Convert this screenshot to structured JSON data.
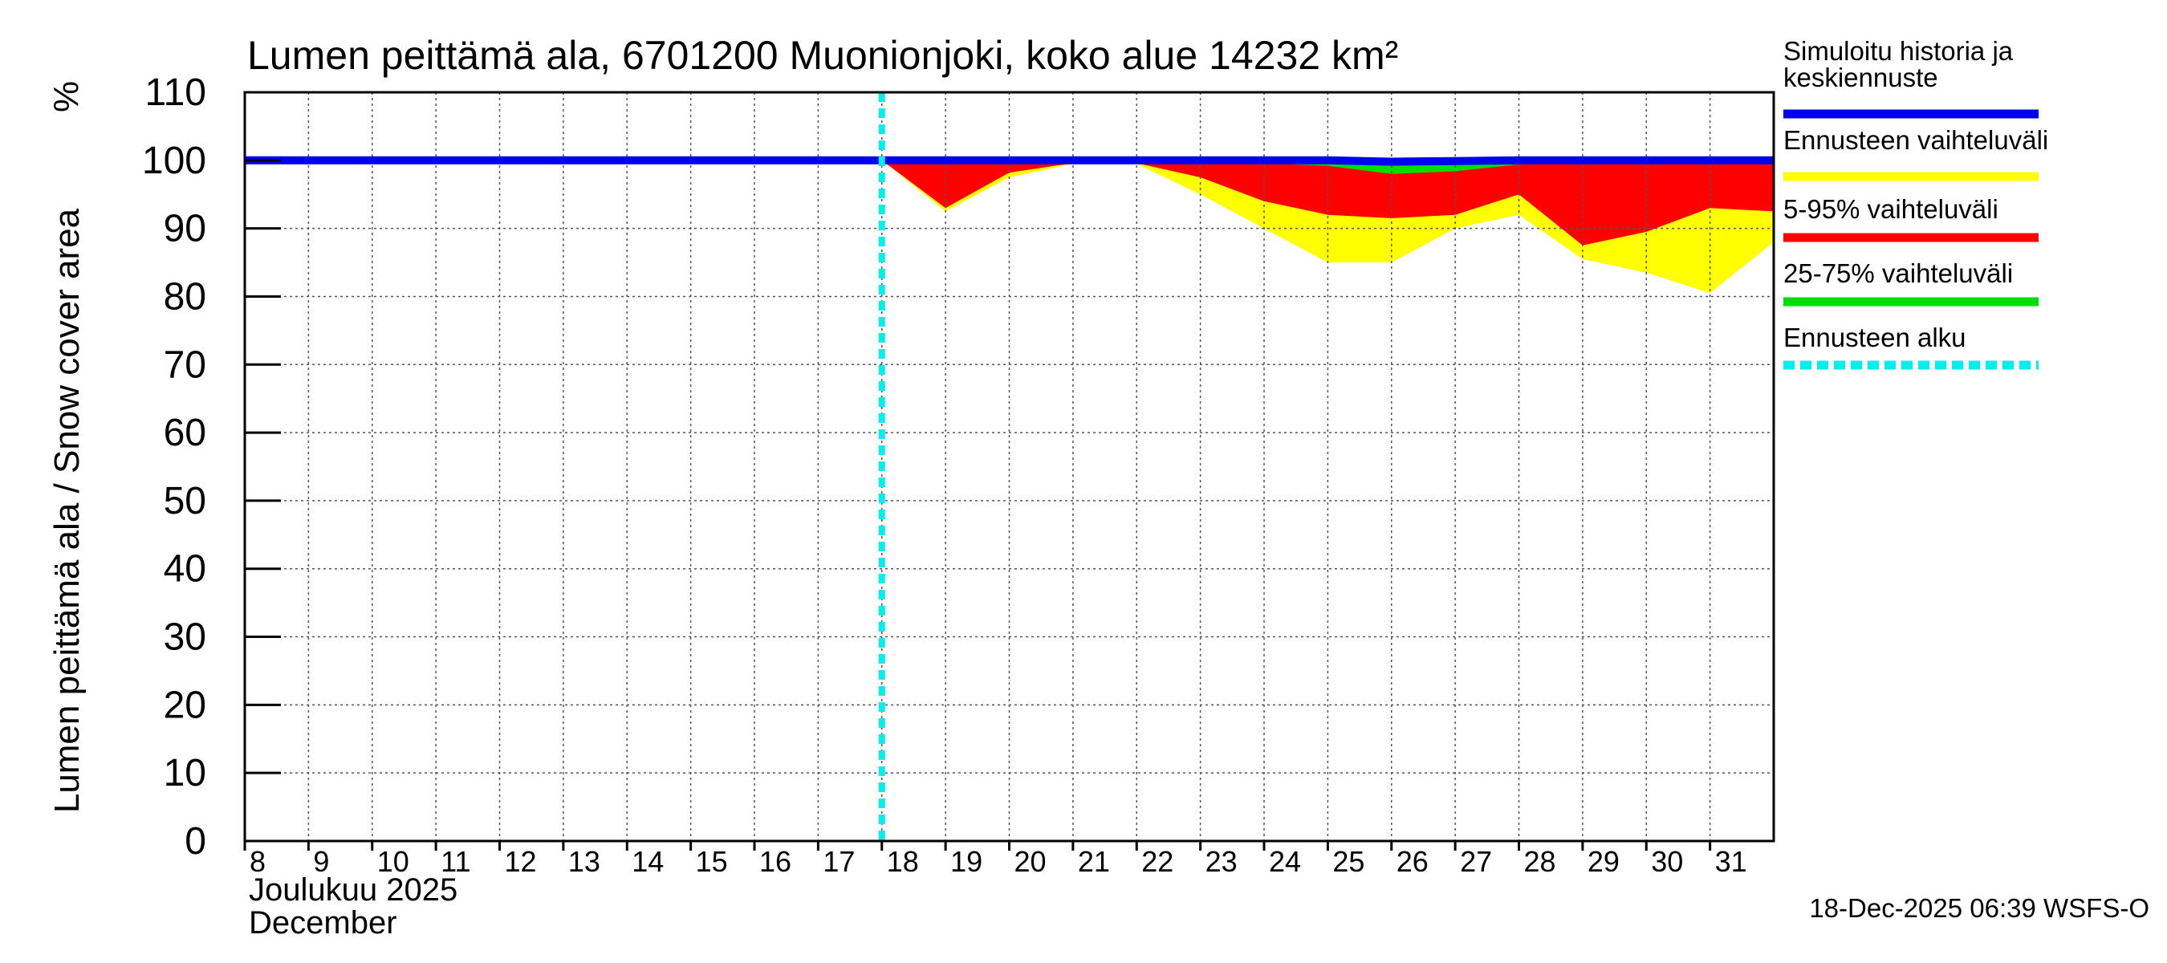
{
  "chart_data": {
    "type": "area",
    "title": "Lumen peittämä ala, 6701200 Muonionjoki, koko alue 14232 km²",
    "ylabel": "Lumen peittämä ala / Snow cover area",
    "yunit": "%",
    "ylim": [
      0,
      110
    ],
    "yticks": [
      0,
      10,
      20,
      30,
      40,
      50,
      60,
      70,
      80,
      90,
      100,
      110
    ],
    "xlim": [
      8,
      32
    ],
    "xticks": [
      8,
      9,
      10,
      11,
      12,
      13,
      14,
      15,
      16,
      17,
      18,
      19,
      20,
      21,
      22,
      23,
      24,
      25,
      26,
      27,
      28,
      29,
      30,
      31
    ],
    "xlabel_line1": "Joulukuu  2025",
    "xlabel_line2": "December",
    "grid": true,
    "forecast_start": 18,
    "series": [
      {
        "name": "Ennusteen vaihteluväli",
        "color": "#ffff00",
        "x": [
          18,
          19,
          20,
          21,
          22,
          23,
          24,
          25,
          26,
          27,
          28,
          29,
          30,
          31,
          32
        ],
        "upper": [
          100,
          100,
          100,
          100,
          100,
          100,
          100,
          100,
          100,
          100,
          100,
          100,
          100,
          100,
          100
        ],
        "lower": [
          100,
          92.5,
          97.5,
          99.5,
          99.5,
          95,
          90,
          85,
          85,
          90,
          92,
          85.5,
          83.5,
          80.5,
          88
        ]
      },
      {
        "name": "5-95% vaihteluväli",
        "color": "#ff0000",
        "x": [
          18,
          19,
          20,
          21,
          22,
          23,
          24,
          25,
          26,
          27,
          28,
          29,
          30,
          31,
          32
        ],
        "upper": [
          100,
          100,
          100,
          100,
          100,
          100,
          100,
          99.6,
          99.5,
          99.8,
          100,
          100,
          100,
          100,
          100
        ],
        "lower": [
          100,
          93,
          98.2,
          99.6,
          99.6,
          97.5,
          94,
          92,
          91.5,
          92,
          95,
          87.5,
          89.5,
          93,
          92.5
        ]
      },
      {
        "name": "25-75% vaihteluväli",
        "color": "#00dd00",
        "x": [
          18,
          19,
          20,
          21,
          22,
          23,
          24,
          25,
          26,
          27,
          28,
          29,
          30,
          31,
          32
        ],
        "upper": [
          100,
          100,
          100,
          100,
          100,
          100,
          100,
          99.6,
          99.5,
          99.8,
          100,
          100,
          100,
          100,
          100
        ],
        "lower": [
          100,
          99.8,
          99.8,
          99.8,
          99.8,
          99.8,
          99.6,
          99.2,
          98,
          98.4,
          99.4,
          99.7,
          99.7,
          99.7,
          99.7
        ]
      },
      {
        "name": "Simuloitu historia ja keskiennuste",
        "color": "#0000ee",
        "x": [
          8,
          9,
          10,
          11,
          12,
          13,
          14,
          15,
          16,
          17,
          18,
          19,
          20,
          21,
          22,
          23,
          24,
          25,
          26,
          27,
          28,
          29,
          30,
          31,
          32
        ],
        "y": [
          100,
          100,
          100,
          100,
          100,
          100,
          100,
          100,
          100,
          100,
          100,
          100,
          100,
          100,
          100,
          100,
          100,
          100,
          99.8,
          99.9,
          100,
          100,
          100,
          100,
          100
        ]
      }
    ],
    "legend": [
      {
        "label_line1": "Simuloitu historia ja",
        "label_line2": "keskiennuste",
        "color": "#0000ee",
        "style": "solid"
      },
      {
        "label_line1": "Ennusteen vaihteluväli",
        "color": "#ffff00",
        "style": "solid"
      },
      {
        "label_line1": "5-95% vaihteluväli",
        "color": "#ff0000",
        "style": "solid"
      },
      {
        "label_line1": "25-75% vaihteluväli",
        "color": "#00dd00",
        "style": "solid"
      },
      {
        "label_line1": "Ennusteen alku",
        "color": "#00eeee",
        "style": "dashed"
      }
    ],
    "legend_position": "right",
    "footer": "18-Dec-2025 06:39 WSFS-O"
  }
}
